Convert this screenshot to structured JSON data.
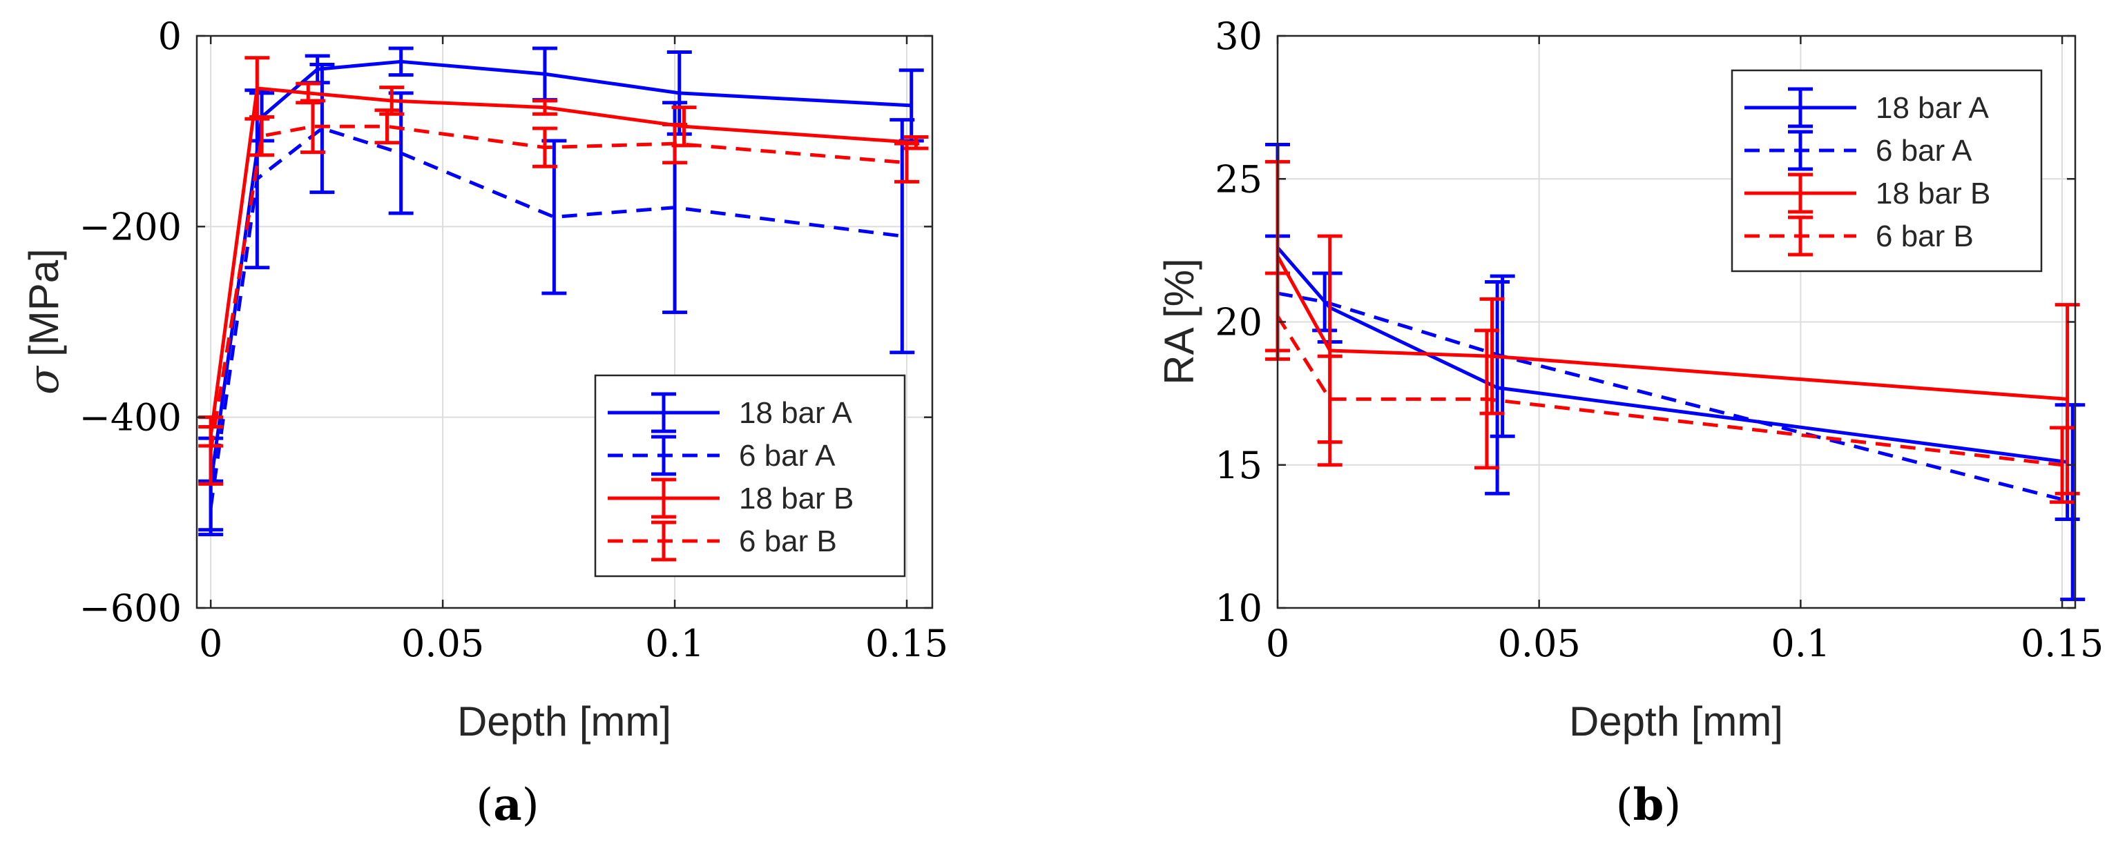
{
  "chart_data": [
    {
      "panel_label": "a",
      "type": "line",
      "xlabel": "Depth [mm]",
      "ylabel_symbol": "σ",
      "ylabel_unit": "[MPa]",
      "xlim": [
        -0.003,
        0.1555
      ],
      "ylim": [
        -600,
        0
      ],
      "xticks": [
        0,
        0.05,
        0.1,
        0.15
      ],
      "xtick_labels": [
        "0",
        "0.05",
        "0.1",
        "0.15"
      ],
      "yticks": [
        -600,
        -400,
        -200,
        0
      ],
      "ytick_labels": [
        "−600",
        "−400",
        "−200",
        "0"
      ],
      "grid": true,
      "legend_position": "bottom-right",
      "series": [
        {
          "name": "18 bar A",
          "color": "#0000ff",
          "dash": "solid",
          "x": [
            0,
            0.011,
            0.023,
            0.041,
            0.072,
            0.101,
            0.151
          ],
          "y": [
            -470,
            -85,
            -35,
            -27,
            -40,
            -60,
            -73
          ],
          "err": [
            48,
            25,
            14,
            14,
            27,
            43,
            37
          ]
        },
        {
          "name": "6 bar A",
          "color": "#0000ff",
          "dash": "dashed",
          "x": [
            0,
            0.01,
            0.024,
            0.041,
            0.074,
            0.1,
            0.149
          ],
          "y": [
            -495,
            -150,
            -97,
            -123,
            -190,
            -180,
            -210
          ],
          "err": [
            28,
            93,
            67,
            63,
            80,
            110,
            122
          ]
        },
        {
          "name": "18 bar B",
          "color": "#ff0000",
          "dash": "solid",
          "x": [
            0,
            0.01,
            0.021,
            0.039,
            0.072,
            0.102,
            0.152
          ],
          "y": [
            -420,
            -55,
            -60,
            -68,
            -75,
            -95,
            -112
          ],
          "err": [
            10,
            32,
            10,
            14,
            7,
            20,
            6
          ]
        },
        {
          "name": "6 bar B",
          "color": "#ff0000",
          "dash": "dashed",
          "x": [
            0,
            0.011,
            0.022,
            0.038,
            0.072,
            0.1,
            0.15
          ],
          "y": [
            -435,
            -105,
            -95,
            -95,
            -117,
            -113,
            -133
          ],
          "err": [
            35,
            20,
            27,
            17,
            20,
            20,
            20
          ]
        }
      ]
    },
    {
      "panel_label": "b",
      "type": "line",
      "xlabel": "Depth [mm]",
      "ylabel": "RA [%]",
      "xlim": [
        0,
        0.1525
      ],
      "ylim": [
        10,
        30
      ],
      "xticks": [
        0,
        0.05,
        0.1,
        0.15
      ],
      "xtick_labels": [
        "0",
        "0.05",
        "0.1",
        "0.15"
      ],
      "yticks": [
        10,
        15,
        20,
        25,
        30
      ],
      "ytick_labels": [
        "10",
        "15",
        "20",
        "25",
        "30"
      ],
      "grid": true,
      "legend_position": "top-right",
      "series": [
        {
          "name": "18 bar A",
          "color": "#0000ff",
          "dash": "solid",
          "x": [
            0,
            0.01,
            0.042,
            0.151
          ],
          "y": [
            22.6,
            20.5,
            17.7,
            15.1
          ],
          "err": [
            3.6,
            1.2,
            3.7,
            2.0
          ]
        },
        {
          "name": "6 bar A",
          "color": "#0000ff",
          "dash": "dashed",
          "x": [
            0,
            0.009,
            0.043,
            0.152
          ],
          "y": [
            21,
            20.7,
            18.8,
            13.7
          ],
          "err": [
            2.0,
            1.0,
            2.8,
            3.4
          ]
        },
        {
          "name": "18 bar B",
          "color": "#ff0000",
          "dash": "solid",
          "x": [
            0,
            0.01,
            0.041,
            0.151
          ],
          "y": [
            22.3,
            19.0,
            18.8,
            17.3
          ],
          "err": [
            3.3,
            4.0,
            2.0,
            3.3
          ]
        },
        {
          "name": "6 bar B",
          "color": "#ff0000",
          "dash": "dashed",
          "x": [
            0,
            0.01,
            0.04,
            0.15
          ],
          "y": [
            20.2,
            17.3,
            17.3,
            15.0
          ],
          "err": [
            1.5,
            1.5,
            2.4,
            1.3
          ]
        }
      ]
    }
  ]
}
